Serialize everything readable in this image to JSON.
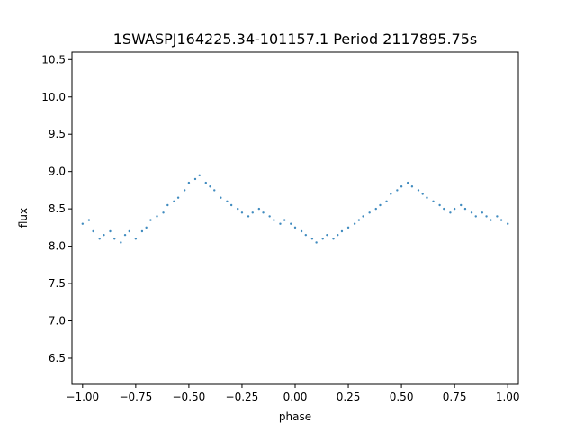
{
  "chart_data": {
    "type": "scatter",
    "title": "1SWASPJ164225.34-101157.1 Period 2117895.75s",
    "xlabel": "phase",
    "ylabel": "flux",
    "xlim": [
      -1.05,
      1.05
    ],
    "ylim": [
      6.15,
      10.6
    ],
    "x_ticks": [
      -1.0,
      -0.75,
      -0.5,
      -0.25,
      0.0,
      0.25,
      0.5,
      0.75,
      1.0
    ],
    "x_tick_labels": [
      "−1.00",
      "−0.75",
      "−0.50",
      "−0.25",
      "0.00",
      "0.25",
      "0.50",
      "0.75",
      "1.00"
    ],
    "y_ticks": [
      6.5,
      7.0,
      7.5,
      8.0,
      8.5,
      9.0,
      9.5,
      10.0,
      10.5
    ],
    "y_tick_labels": [
      "6.5",
      "7.0",
      "7.5",
      "8.0",
      "8.5",
      "9.0",
      "9.5",
      "10.0",
      "10.5"
    ],
    "marker_color": "#1f77b4",
    "grid": false,
    "series": [
      {
        "x": [
          -1.0,
          -0.97,
          -0.95,
          -0.92,
          -0.9,
          -0.87,
          -0.85,
          -0.82,
          -0.8,
          -0.78,
          -0.75,
          -0.72,
          -0.7,
          -0.68,
          -0.65,
          -0.62,
          -0.6,
          -0.57,
          -0.55,
          -0.52,
          -0.5,
          -0.47,
          -0.45,
          -0.42,
          -0.4,
          -0.38,
          -0.35,
          -0.32,
          -0.3,
          -0.27,
          -0.25,
          -0.22,
          -0.2,
          -0.17,
          -0.15,
          -0.12,
          -0.1,
          -0.07,
          -0.05,
          -0.02,
          0.0,
          0.03,
          0.05,
          0.08,
          0.1,
          0.13,
          0.15,
          0.18,
          0.2,
          0.22,
          0.25,
          0.28,
          0.3,
          0.32,
          0.35,
          0.38,
          0.4,
          0.43,
          0.45,
          0.48,
          0.5,
          0.53,
          0.55,
          0.58,
          0.6,
          0.62,
          0.65,
          0.68,
          0.7,
          0.73,
          0.75,
          0.78,
          0.8,
          0.83,
          0.85,
          0.88,
          0.9,
          0.92,
          0.95,
          0.97,
          1.0
        ],
        "y": [
          8.3,
          8.35,
          8.2,
          8.1,
          8.15,
          8.2,
          8.1,
          8.05,
          8.15,
          8.2,
          8.1,
          8.2,
          8.25,
          8.35,
          8.4,
          8.45,
          8.55,
          8.6,
          8.65,
          8.75,
          8.85,
          8.9,
          8.95,
          8.85,
          8.8,
          8.75,
          8.65,
          8.6,
          8.55,
          8.5,
          8.45,
          8.4,
          8.45,
          8.5,
          8.45,
          8.4,
          8.35,
          8.3,
          8.35,
          8.3,
          8.25,
          8.2,
          8.15,
          8.1,
          8.05,
          8.1,
          8.15,
          8.1,
          8.15,
          8.2,
          8.25,
          8.3,
          8.35,
          8.4,
          8.45,
          8.5,
          8.55,
          8.6,
          8.7,
          8.75,
          8.8,
          8.85,
          8.8,
          8.75,
          8.7,
          8.65,
          8.6,
          8.55,
          8.5,
          8.45,
          8.5,
          8.55,
          8.5,
          8.45,
          8.4,
          8.45,
          8.4,
          8.35,
          8.4,
          8.35,
          8.3
        ]
      }
    ]
  }
}
